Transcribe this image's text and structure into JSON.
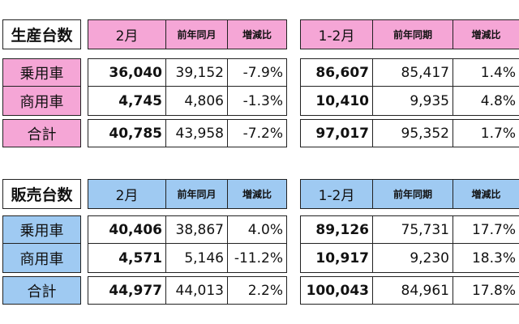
{
  "tables": [
    {
      "title": "生産台数",
      "month_header": "2月",
      "ytd_header": "1-2月",
      "prev_year_month_header": "前年同月",
      "prev_year_period_header": "前年同期",
      "change_header": "増減比",
      "rows": [
        {
          "label": "乗用車",
          "month": "36,040",
          "month_prev": "39,152",
          "month_chg": "-7.9%",
          "ytd": "86,607",
          "ytd_prev": "85,417",
          "ytd_chg": "1.4%"
        },
        {
          "label": "商用車",
          "month": "4,745",
          "month_prev": "4,806",
          "month_chg": "-1.3%",
          "ytd": "10,410",
          "ytd_prev": "9,935",
          "ytd_chg": "4.8%"
        },
        {
          "label": "合計",
          "month": "40,785",
          "month_prev": "43,958",
          "month_chg": "-7.2%",
          "ytd": "97,017",
          "ytd_prev": "95,352",
          "ytd_chg": "1.7%"
        }
      ],
      "accent_color": "#f5a6d6"
    },
    {
      "title": "販売台数",
      "month_header": "2月",
      "ytd_header": "1-2月",
      "prev_year_month_header": "前年同月",
      "prev_year_period_header": "前年同期",
      "change_header": "増減比",
      "rows": [
        {
          "label": "乗用車",
          "month": "40,406",
          "month_prev": "38,867",
          "month_chg": "4.0%",
          "ytd": "89,126",
          "ytd_prev": "75,731",
          "ytd_chg": "17.7%"
        },
        {
          "label": "商用車",
          "month": "4,571",
          "month_prev": "5,146",
          "month_chg": "-11.2%",
          "ytd": "10,917",
          "ytd_prev": "9,230",
          "ytd_chg": "18.3%"
        },
        {
          "label": "合計",
          "month": "44,977",
          "month_prev": "44,013",
          "month_chg": "2.2%",
          "ytd": "100,043",
          "ytd_prev": "84,961",
          "ytd_chg": "17.8%"
        }
      ],
      "accent_color": "#9fcaf2"
    }
  ]
}
